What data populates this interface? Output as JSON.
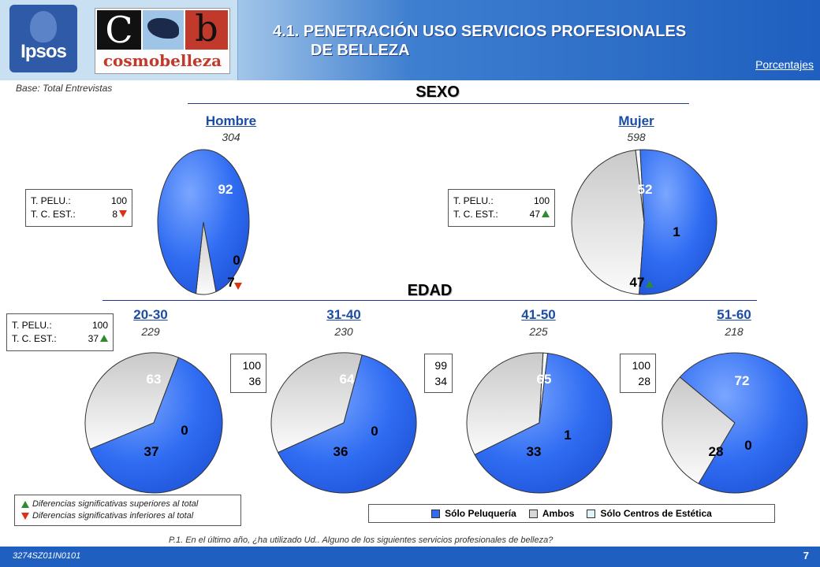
{
  "header": {
    "title_line1": "4.1. PENETRACIÓN USO SERVICIOS PROFESIONALES",
    "title_line2": "DE BELLEZA",
    "units": "Porcentajes",
    "logo_ipsos": "Ipsos",
    "logo_cmb_c": "C",
    "logo_cmb_b": "b",
    "logo_cmb_name": "cosmobelleza"
  },
  "base_note": "Base: Total Entrevistas",
  "sections": {
    "sexo": "SEXO",
    "edad": "EDAD"
  },
  "colors": {
    "solo_peluqueria": "#2f6cf2",
    "ambos": "#d8d8d8",
    "solo_estetica": "#dff3fb",
    "up": "#2e8b2e",
    "down": "#e03010"
  },
  "chart_data": [
    {
      "type": "pie",
      "group": "SEXO",
      "label": "Hombre",
      "base": "304",
      "slices": [
        92,
        0,
        7
      ],
      "labels": [
        "92",
        "0",
        "7"
      ],
      "marker": [
        null,
        null,
        "down"
      ]
    },
    {
      "type": "pie",
      "group": "SEXO",
      "label": "Mujer",
      "base": "598",
      "slices": [
        52,
        1,
        47
      ],
      "labels": [
        "52",
        "1",
        "47"
      ],
      "marker": [
        null,
        null,
        "up"
      ]
    },
    {
      "type": "pie",
      "group": "EDAD",
      "label": "20-30",
      "base": "229",
      "slices": [
        63,
        0,
        37
      ],
      "labels": [
        "63",
        "0",
        "37"
      ],
      "marker": [
        null,
        null,
        null
      ]
    },
    {
      "type": "pie",
      "group": "EDAD",
      "label": "31-40",
      "base": "230",
      "slices": [
        64,
        0,
        36
      ],
      "labels": [
        "64",
        "0",
        "36"
      ],
      "marker": [
        null,
        null,
        null
      ]
    },
    {
      "type": "pie",
      "group": "EDAD",
      "label": "41-50",
      "base": "225",
      "slices": [
        65,
        1,
        33
      ],
      "labels": [
        "65",
        "1",
        "33"
      ],
      "marker": [
        null,
        null,
        null
      ]
    },
    {
      "type": "pie",
      "group": "EDAD",
      "label": "51-60",
      "base": "218",
      "slices": [
        72,
        0,
        28
      ],
      "labels": [
        "72",
        "0",
        "28"
      ],
      "marker": [
        null,
        null,
        null
      ]
    }
  ],
  "totals_boxes": {
    "hombre": {
      "pelu_label": "T. PELU.:",
      "pelu": "100",
      "est_label": "T. C. EST.:",
      "est": "8"
    },
    "mujer": {
      "pelu_label": "T. PELU.:",
      "pelu": "100",
      "est_label": "T. C. EST.:",
      "est": "47"
    },
    "edad_20_30": {
      "pelu_label": "T. PELU.:",
      "pelu": "100",
      "est_label": "T. C. EST.:",
      "est": "37"
    },
    "edad_31_40": {
      "pelu": "100",
      "est": "36"
    },
    "edad_41_50": {
      "pelu": "99",
      "est": "34"
    },
    "edad_51_60": {
      "pelu": "100",
      "est": "28"
    }
  },
  "significance": {
    "up": "Diferencias significativas superiores al total",
    "down": "Diferencias significativas inferiores al total"
  },
  "legend": [
    "Sólo Peluquería",
    "Ambos",
    "Sólo Centros de Estética"
  ],
  "question": "P.1.   En el último año, ¿ha utilizado Ud.. Alguno de los siguientes servicios profesionales de belleza?",
  "footer": {
    "code": "3274SZ01IN0101",
    "page": "7"
  }
}
